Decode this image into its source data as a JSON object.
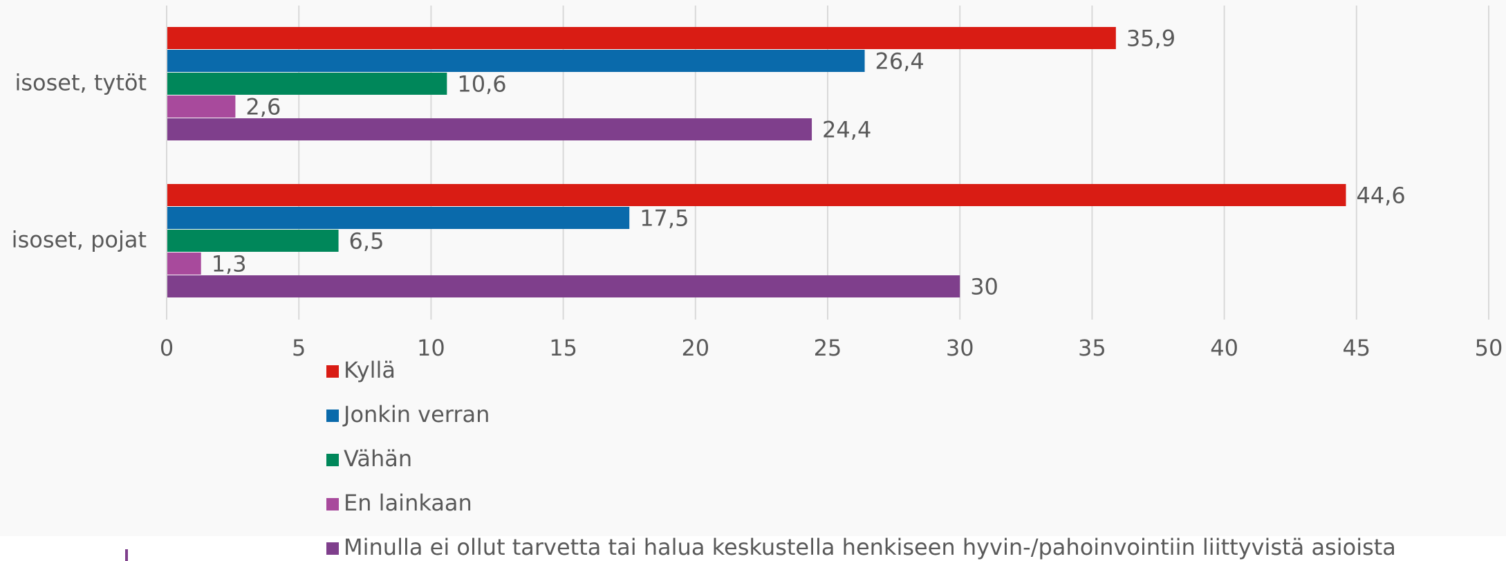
{
  "chart_data": {
    "type": "bar",
    "orientation": "horizontal",
    "categories": [
      "isoset, tytöt",
      "isoset, pojat"
    ],
    "series": [
      {
        "name": "Kyllä",
        "color": "#d91c14",
        "values": [
          35.9,
          44.6
        ],
        "value_labels": [
          "35,9",
          "44,6"
        ]
      },
      {
        "name": "Jonkin verran",
        "color": "#0a6aab",
        "values": [
          26.4,
          17.5
        ],
        "value_labels": [
          "26,4",
          "17,5"
        ]
      },
      {
        "name": "Vähän",
        "color": "#00875a",
        "values": [
          10.6,
          6.5
        ],
        "value_labels": [
          "10,6",
          "6,5"
        ]
      },
      {
        "name": "En lainkaan",
        "color": "#a84a9c",
        "values": [
          2.6,
          1.3
        ],
        "value_labels": [
          "2,6",
          "1,3"
        ]
      },
      {
        "name": "Minulla ei ollut tarvetta tai halua keskustella henkiseen hyvin-/pahoinvointiin liittyvistä asioista",
        "color": "#7f3f8c",
        "values": [
          24.4,
          30
        ],
        "value_labels": [
          "24,4",
          "30"
        ]
      }
    ],
    "xlim": [
      0,
      50
    ],
    "xticks": [
      0,
      5,
      10,
      15,
      20,
      25,
      30,
      35,
      40,
      45,
      50
    ],
    "grid": true,
    "legend": "bottom"
  }
}
